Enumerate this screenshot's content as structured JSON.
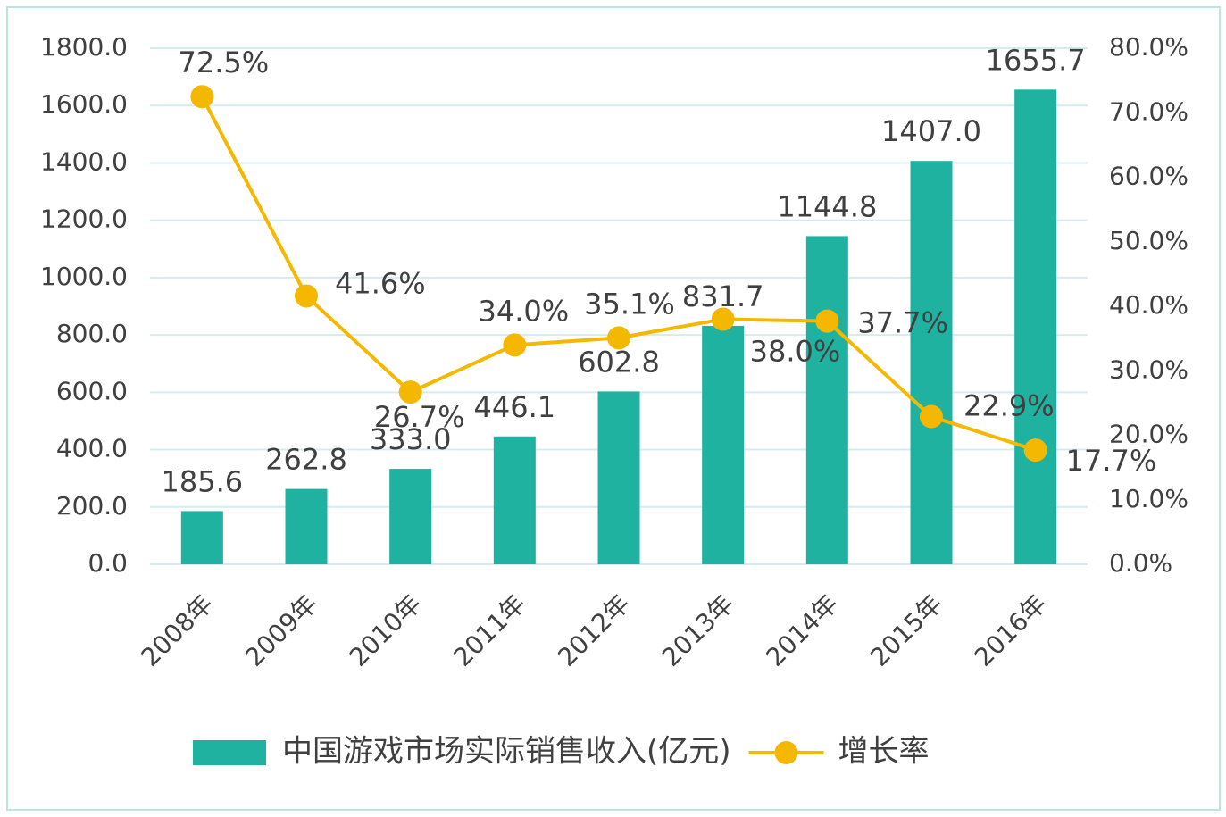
{
  "chart_data": {
    "type": "bar-line",
    "categories": [
      "2008年",
      "2009年",
      "2010年",
      "2011年",
      "2012年",
      "2013年",
      "2014年",
      "2015年",
      "2016年"
    ],
    "series": [
      {
        "name": "中国游戏市场实际销售收入(亿元)",
        "type": "bar",
        "color": "#20b2a0",
        "axis": "y",
        "values": [
          185.6,
          262.8,
          333.0,
          446.1,
          602.8,
          831.7,
          1144.8,
          1407.0,
          1655.7
        ],
        "value_labels": [
          "185.6",
          "262.8",
          "333.0",
          "446.1",
          "602.8",
          "831.7",
          "1144.8",
          "1407.0",
          "1655.7"
        ]
      },
      {
        "name": "增长率",
        "type": "line",
        "color": "#f5b800",
        "axis": "y2",
        "values": [
          72.5,
          41.6,
          26.7,
          34.0,
          35.1,
          38.0,
          37.7,
          22.9,
          17.7
        ],
        "value_labels": [
          "72.5%",
          "41.6%",
          "26.7%",
          "34.0%",
          "35.1%",
          "38.0%",
          "37.7%",
          "22.9%",
          "17.7%"
        ]
      }
    ],
    "ylim": [
      0,
      1800
    ],
    "yticks": [
      {
        "value": 0,
        "label": "0.0"
      },
      {
        "value": 200,
        "label": "200.0"
      },
      {
        "value": 400,
        "label": "400.0"
      },
      {
        "value": 600,
        "label": "600.0"
      },
      {
        "value": 800,
        "label": "800.0"
      },
      {
        "value": 1000,
        "label": "1000.0"
      },
      {
        "value": 1200,
        "label": "1200.0"
      },
      {
        "value": 1400,
        "label": "1400.0"
      },
      {
        "value": 1600,
        "label": "1600.0"
      },
      {
        "value": 1800,
        "label": "1800.0"
      }
    ],
    "y2lim": [
      0,
      80
    ],
    "y2ticks": [
      {
        "value": 0,
        "label": "0.0%"
      },
      {
        "value": 10,
        "label": "10.0%"
      },
      {
        "value": 20,
        "label": "20.0%"
      },
      {
        "value": 30,
        "label": "30.0%"
      },
      {
        "value": 40,
        "label": "40.0%"
      },
      {
        "value": 50,
        "label": "50.0%"
      },
      {
        "value": 60,
        "label": "60.0%"
      },
      {
        "value": 70,
        "label": "70.0%"
      },
      {
        "value": 80,
        "label": "80.0%"
      }
    ],
    "grid": true,
    "legend": "bottom"
  }
}
